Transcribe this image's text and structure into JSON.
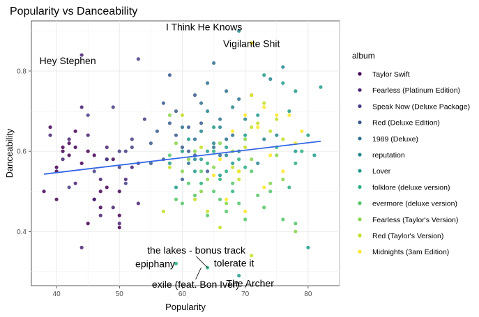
{
  "chart_data": {
    "type": "scatter",
    "title": "Popularity vs Danceability",
    "xlabel": "Popularity",
    "ylabel": "Danceability",
    "xlim": [
      36,
      85
    ],
    "ylim": [
      0.265,
      0.925
    ],
    "x_ticks": [
      40,
      50,
      60,
      70,
      80
    ],
    "y_ticks": [
      0.4,
      0.6,
      0.8
    ],
    "grid": true,
    "legend_title": "album",
    "legend_position": "right",
    "trend_line": {
      "x": [
        38,
        82
      ],
      "y": [
        0.543,
        0.625
      ],
      "color": "#3366e6"
    },
    "series": [
      {
        "name": "Taylor Swift",
        "color": "#440154",
        "points": [
          [
            38,
            0.5
          ],
          [
            39,
            0.66
          ],
          [
            40,
            0.56
          ],
          [
            40,
            0.55
          ],
          [
            40,
            0.48
          ],
          [
            41,
            0.6
          ],
          [
            41,
            0.61
          ],
          [
            42,
            0.59
          ],
          [
            42,
            0.62
          ],
          [
            43,
            0.65
          ],
          [
            43,
            0.61
          ],
          [
            44,
            0.57
          ],
          [
            45,
            0.42
          ],
          [
            45,
            0.6
          ],
          [
            46,
            0.48
          ],
          [
            46,
            0.59
          ],
          [
            47,
            0.46
          ],
          [
            47,
            0.5
          ],
          [
            48,
            0.51
          ],
          [
            48,
            0.58
          ],
          [
            49,
            0.58
          ],
          [
            50,
            0.5
          ],
          [
            50,
            0.44
          ],
          [
            50,
            0.41
          ]
        ]
      },
      {
        "name": "Fearless (Platinum Edition)",
        "color": "#482173",
        "points": [
          [
            44,
            0.84
          ],
          [
            39,
            0.64
          ],
          [
            41,
            0.58
          ],
          [
            42,
            0.63
          ],
          [
            43,
            0.52
          ],
          [
            44,
            0.71
          ],
          [
            45,
            0.64
          ],
          [
            46,
            0.48
          ],
          [
            47,
            0.44
          ],
          [
            47,
            0.53
          ],
          [
            48,
            0.61
          ],
          [
            49,
            0.46
          ],
          [
            50,
            0.42
          ],
          [
            51,
            0.53
          ],
          [
            52,
            0.56
          ],
          [
            53,
            0.47
          ],
          [
            44,
            0.36
          ]
        ]
      },
      {
        "name": "Speak Now (Deluxe Package)",
        "color": "#433e85",
        "points": [
          [
            45,
            0.69
          ],
          [
            48,
            0.58
          ],
          [
            49,
            0.71
          ],
          [
            50,
            0.6
          ],
          [
            51,
            0.52
          ],
          [
            52,
            0.61
          ],
          [
            53,
            0.57
          ],
          [
            53,
            0.83
          ],
          [
            54,
            0.68
          ],
          [
            42,
            0.51
          ],
          [
            46,
            0.55
          ],
          [
            50,
            0.56
          ],
          [
            51,
            0.6
          ],
          [
            52,
            0.63
          ]
        ]
      },
      {
        "name": "Red (Deluxe Edition)",
        "color": "#38598c",
        "points": [
          [
            55,
            0.62
          ],
          [
            56,
            0.65
          ],
          [
            57,
            0.72
          ],
          [
            58,
            0.79
          ],
          [
            59,
            0.64
          ],
          [
            60,
            0.53
          ],
          [
            61,
            0.66
          ],
          [
            62,
            0.59
          ],
          [
            57,
            0.58
          ],
          [
            60,
            0.61
          ],
          [
            63,
            0.67
          ],
          [
            59,
            0.7
          ],
          [
            61,
            0.6
          ],
          [
            64,
            0.55
          ],
          [
            55,
            0.57
          ],
          [
            58,
            0.67
          ],
          [
            62,
            0.74
          ]
        ]
      },
      {
        "name": "1989 (Deluxe)",
        "color": "#2d708e",
        "points": [
          [
            60,
            0.66
          ],
          [
            61,
            0.57
          ],
          [
            63,
            0.72
          ],
          [
            64,
            0.77
          ],
          [
            65,
            0.61
          ],
          [
            66,
            0.68
          ],
          [
            67,
            0.75
          ],
          [
            68,
            0.64
          ],
          [
            69,
            0.73
          ],
          [
            62,
            0.63
          ],
          [
            65,
            0.82
          ],
          [
            66,
            0.59
          ],
          [
            67,
            0.63
          ]
        ]
      },
      {
        "name": "reputation",
        "color": "#25858e",
        "points": [
          [
            62,
            0.58
          ],
          [
            63,
            0.65
          ],
          [
            64,
            0.7
          ],
          [
            65,
            0.62
          ],
          [
            66,
            0.66
          ],
          [
            67,
            0.59
          ],
          [
            68,
            0.71
          ],
          [
            69,
            0.6
          ],
          [
            70,
            0.68
          ],
          [
            71,
            0.74
          ],
          [
            72,
            0.57
          ],
          [
            73,
            0.63
          ],
          [
            69,
            0.9
          ],
          [
            74,
            0.78
          ],
          [
            75,
            0.64
          ],
          [
            76,
            0.81
          ]
        ]
      },
      {
        "name": "Lover",
        "color": "#1e9b8a",
        "points": [
          [
            58,
            0.57
          ],
          [
            59,
            0.51
          ],
          [
            60,
            0.6
          ],
          [
            61,
            0.63
          ],
          [
            62,
            0.55
          ],
          [
            63,
            0.58
          ],
          [
            64,
            0.6
          ],
          [
            65,
            0.66
          ],
          [
            66,
            0.54
          ],
          [
            67,
            0.61
          ],
          [
            68,
            0.57
          ],
          [
            69,
            0.29
          ],
          [
            70,
            0.64
          ],
          [
            72,
            0.69
          ],
          [
            73,
            0.79
          ],
          [
            76,
            0.77
          ],
          [
            77,
            0.7
          ],
          [
            78,
            0.75
          ],
          [
            82,
            0.76
          ],
          [
            80,
            0.64
          ],
          [
            78,
            0.6
          ],
          [
            81,
            0.59
          ],
          [
            80,
            0.36
          ]
        ]
      },
      {
        "name": "folklore (deluxe version)",
        "color": "#2ab07f",
        "points": [
          [
            59,
            0.32
          ],
          [
            64,
            0.31
          ],
          [
            63,
            0.52
          ],
          [
            64,
            0.57
          ],
          [
            65,
            0.6
          ],
          [
            66,
            0.53
          ],
          [
            67,
            0.55
          ],
          [
            68,
            0.5
          ],
          [
            69,
            0.58
          ],
          [
            70,
            0.56
          ],
          [
            75,
            0.61
          ],
          [
            77,
            0.51
          ],
          [
            78,
            0.57
          ],
          [
            79,
            0.6
          ]
        ]
      },
      {
        "name": "evermore (deluxe version)",
        "color": "#52c569",
        "points": [
          [
            58,
            0.59
          ],
          [
            59,
            0.48
          ],
          [
            60,
            0.47
          ],
          [
            61,
            0.52
          ],
          [
            62,
            0.49
          ],
          [
            63,
            0.55
          ],
          [
            64,
            0.44
          ],
          [
            65,
            0.5
          ],
          [
            66,
            0.48
          ],
          [
            67,
            0.45
          ],
          [
            68,
            0.52
          ],
          [
            69,
            0.47
          ],
          [
            70,
            0.43
          ],
          [
            71,
            0.55
          ],
          [
            72,
            0.49
          ],
          [
            73,
            0.46
          ],
          [
            74,
            0.5
          ],
          [
            76,
            0.43
          ],
          [
            78,
            0.42
          ]
        ]
      },
      {
        "name": "Fearless (Taylor's Version)",
        "color": "#86d549",
        "points": [
          [
            58,
            0.69
          ],
          [
            59,
            0.62
          ],
          [
            60,
            0.55
          ],
          [
            61,
            0.58
          ],
          [
            62,
            0.6
          ],
          [
            63,
            0.5
          ],
          [
            64,
            0.53
          ],
          [
            65,
            0.56
          ],
          [
            66,
            0.62
          ],
          [
            67,
            0.47
          ],
          [
            68,
            0.6
          ],
          [
            69,
            0.55
          ],
          [
            70,
            0.63
          ],
          [
            71,
            0.58
          ],
          [
            74,
            0.52
          ],
          [
            75,
            0.59
          ],
          [
            76,
            0.53
          ],
          [
            78,
            0.4
          ]
        ]
      },
      {
        "name": "Red (Taylor's Version)",
        "color": "#c2df23",
        "points": [
          [
            57,
            0.45
          ],
          [
            58,
            0.56
          ],
          [
            60,
            0.69
          ],
          [
            62,
            0.48
          ],
          [
            63,
            0.61
          ],
          [
            64,
            0.45
          ],
          [
            66,
            0.41
          ],
          [
            68,
            0.56
          ],
          [
            69,
            0.53
          ],
          [
            70,
            0.61
          ],
          [
            71,
            0.66
          ],
          [
            72,
            0.67
          ],
          [
            73,
            0.72
          ],
          [
            74,
            0.65
          ],
          [
            75,
            0.68
          ],
          [
            76,
            0.63
          ],
          [
            71,
            0.34
          ]
        ]
      },
      {
        "name": "Midnights (3am Edition)",
        "color": "#fde725",
        "points": [
          [
            65,
            0.54
          ],
          [
            66,
            0.58
          ],
          [
            67,
            0.48
          ],
          [
            68,
            0.65
          ],
          [
            69,
            0.55
          ],
          [
            70,
            0.69
          ],
          [
            71,
            0.74
          ],
          [
            71,
            0.87
          ],
          [
            72,
            0.66
          ],
          [
            73,
            0.71
          ],
          [
            74,
            0.59
          ],
          [
            75,
            0.69
          ],
          [
            76,
            0.55
          ],
          [
            77,
            0.69
          ],
          [
            78,
            0.62
          ],
          [
            79,
            0.65
          ],
          [
            70,
            0.45
          ],
          [
            73,
            0.51
          ]
        ]
      }
    ],
    "annotations": [
      {
        "text": "I Think He Knows",
        "x": 69,
        "y": 0.9
      },
      {
        "text": "Hey Stephen",
        "x": 44,
        "y": 0.84
      },
      {
        "text": "Vigilante Shit",
        "x": 71,
        "y": 0.87
      },
      {
        "text": "the lakes - bonus track",
        "x": 64,
        "y": 0.31
      },
      {
        "text": "epiphany",
        "x": 59,
        "y": 0.32
      },
      {
        "text": "tolerate it",
        "x": 65,
        "y": 0.32
      },
      {
        "text": "exile (feat. Bon Iver)",
        "x": 63,
        "y": 0.31
      },
      {
        "text": "The Archer",
        "x": 69,
        "y": 0.29
      }
    ]
  }
}
